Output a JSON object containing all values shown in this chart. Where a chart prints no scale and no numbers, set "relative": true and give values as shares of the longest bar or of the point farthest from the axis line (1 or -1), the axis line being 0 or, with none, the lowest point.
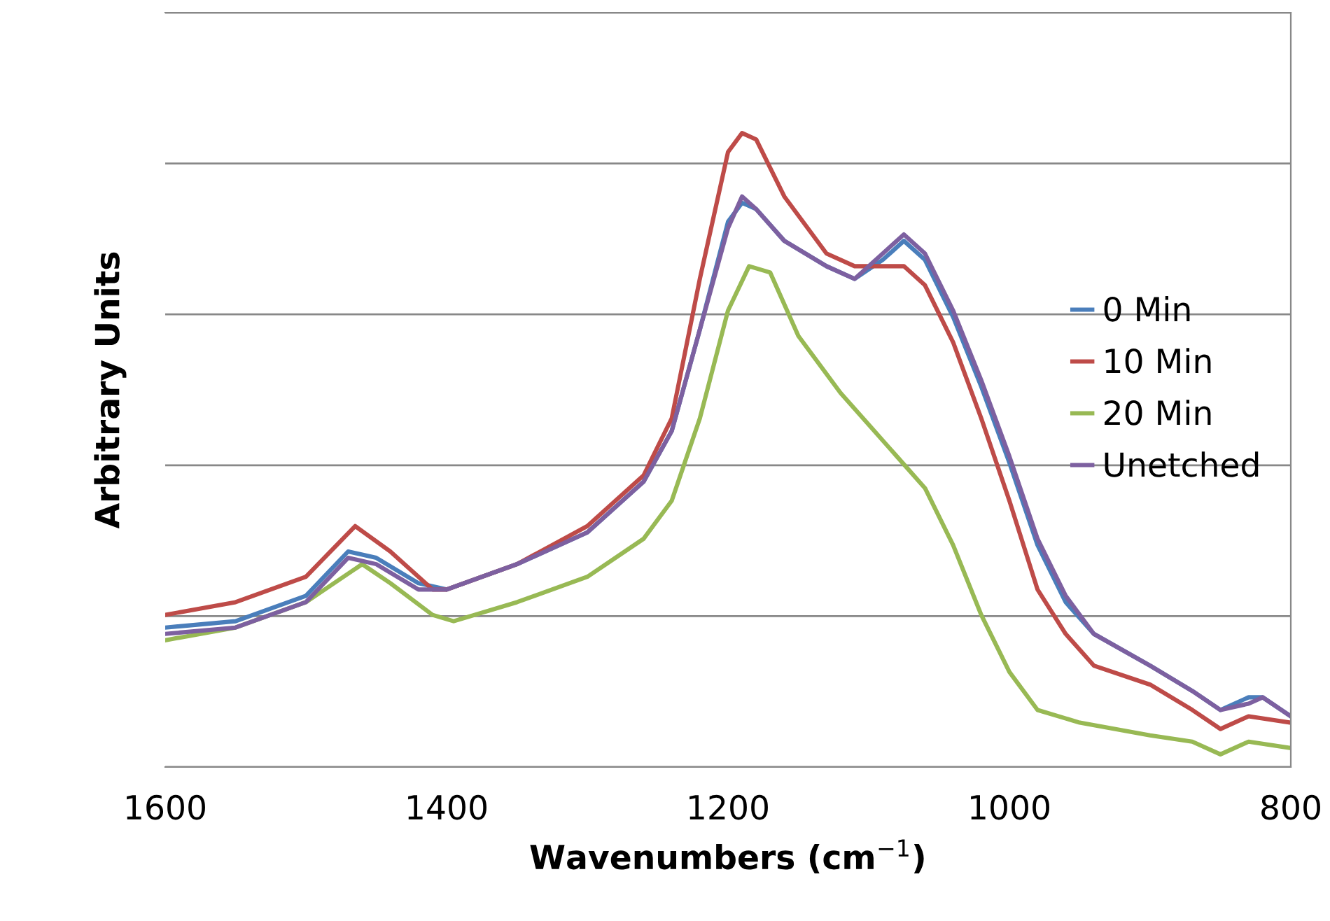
{
  "chart_data": {
    "type": "line",
    "xlabel": "Wavenumbers (cm$^{−1}$)",
    "ylabel": "Arbitrary Units",
    "relative": true,
    "xlim": [
      1600,
      800
    ],
    "xticks": [
      1600,
      1400,
      1200,
      1000,
      800
    ],
    "grid": "y",
    "legend": "right",
    "marker": "none",
    "line_style": "solid",
    "series": [
      {
        "name": "0 Min",
        "color": "#4a7ebb",
        "x": [
          1600,
          1550,
          1500,
          1470,
          1450,
          1420,
          1400,
          1350,
          1300,
          1260,
          1240,
          1220,
          1200,
          1190,
          1180,
          1160,
          1130,
          1110,
          1090,
          1075,
          1060,
          1040,
          1020,
          1000,
          980,
          960,
          940,
          900,
          870,
          850,
          830,
          820,
          800
        ],
        "values": [
          0.22,
          0.23,
          0.27,
          0.34,
          0.33,
          0.29,
          0.28,
          0.32,
          0.37,
          0.45,
          0.53,
          0.69,
          0.86,
          0.89,
          0.88,
          0.83,
          0.79,
          0.77,
          0.8,
          0.83,
          0.8,
          0.71,
          0.6,
          0.48,
          0.35,
          0.26,
          0.21,
          0.16,
          0.12,
          0.09,
          0.11,
          0.11,
          0.08
        ]
      },
      {
        "name": "10 Min",
        "color": "#be4b48",
        "x": [
          1600,
          1550,
          1500,
          1465,
          1440,
          1410,
          1400,
          1350,
          1300,
          1260,
          1240,
          1220,
          1200,
          1190,
          1180,
          1160,
          1130,
          1110,
          1090,
          1075,
          1060,
          1040,
          1020,
          1000,
          980,
          960,
          940,
          900,
          870,
          850,
          830,
          800
        ],
        "values": [
          0.24,
          0.26,
          0.3,
          0.38,
          0.34,
          0.28,
          0.28,
          0.32,
          0.38,
          0.46,
          0.55,
          0.77,
          0.97,
          1.0,
          0.99,
          0.9,
          0.81,
          0.79,
          0.79,
          0.79,
          0.76,
          0.67,
          0.55,
          0.42,
          0.28,
          0.21,
          0.16,
          0.13,
          0.09,
          0.06,
          0.08,
          0.07
        ]
      },
      {
        "name": "20 Min",
        "color": "#98b954",
        "x": [
          1600,
          1550,
          1500,
          1460,
          1440,
          1410,
          1395,
          1350,
          1300,
          1260,
          1240,
          1220,
          1200,
          1185,
          1170,
          1150,
          1120,
          1100,
          1080,
          1060,
          1040,
          1020,
          1000,
          980,
          950,
          900,
          870,
          850,
          830,
          800
        ],
        "values": [
          0.2,
          0.22,
          0.26,
          0.32,
          0.29,
          0.24,
          0.23,
          0.26,
          0.3,
          0.36,
          0.42,
          0.55,
          0.72,
          0.79,
          0.78,
          0.68,
          0.59,
          0.54,
          0.49,
          0.44,
          0.35,
          0.24,
          0.15,
          0.09,
          0.07,
          0.05,
          0.04,
          0.02,
          0.04,
          0.03
        ]
      },
      {
        "name": "Unetched",
        "color": "#7d60a0",
        "x": [
          1600,
          1550,
          1500,
          1470,
          1450,
          1420,
          1400,
          1350,
          1300,
          1260,
          1240,
          1220,
          1200,
          1190,
          1180,
          1160,
          1130,
          1110,
          1090,
          1075,
          1060,
          1040,
          1020,
          1000,
          980,
          960,
          940,
          900,
          870,
          850,
          830,
          820,
          800
        ],
        "values": [
          0.21,
          0.22,
          0.26,
          0.33,
          0.32,
          0.28,
          0.28,
          0.32,
          0.37,
          0.45,
          0.53,
          0.69,
          0.85,
          0.9,
          0.88,
          0.83,
          0.79,
          0.77,
          0.81,
          0.84,
          0.81,
          0.72,
          0.61,
          0.49,
          0.36,
          0.27,
          0.21,
          0.16,
          0.12,
          0.09,
          0.1,
          0.11,
          0.08
        ]
      }
    ]
  }
}
